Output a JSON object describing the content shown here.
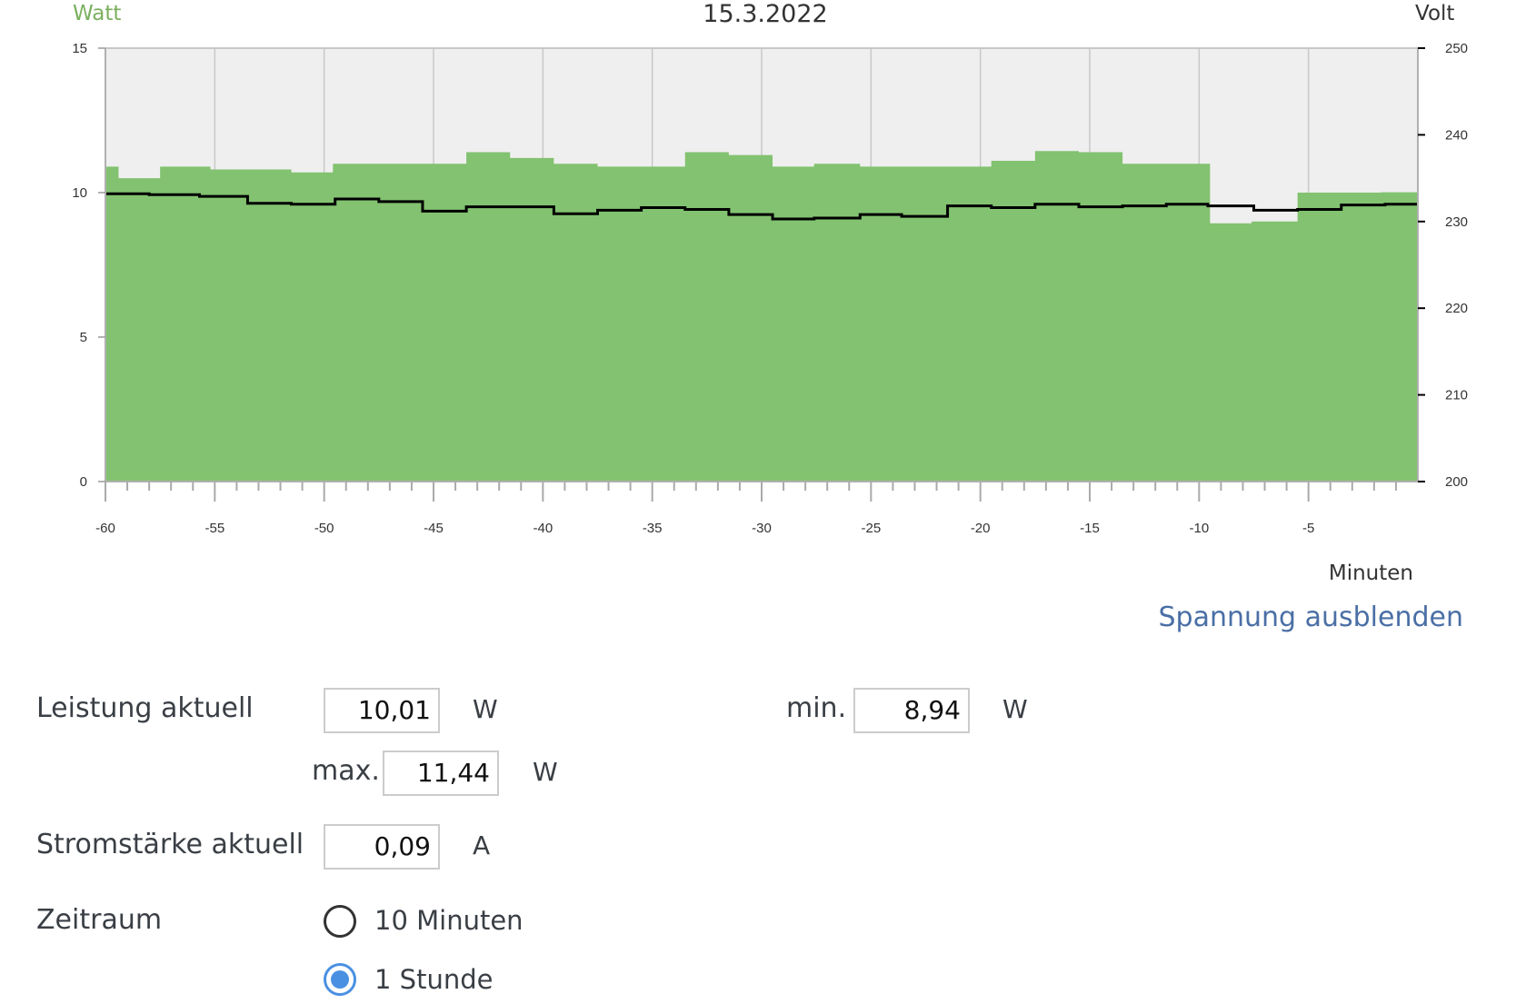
{
  "chart_data": {
    "type": "area",
    "title": "15.3.2022",
    "xlabel": "Minuten",
    "ylabel_left": "Watt",
    "ylabel_right": "Volt",
    "xlim": [
      -60,
      0
    ],
    "ylim_left": [
      0,
      15
    ],
    "ylim_right": [
      200,
      250
    ],
    "x_ticks": [
      -60,
      -55,
      -50,
      -45,
      -40,
      -35,
      -30,
      -25,
      -20,
      -15,
      -10,
      -5
    ],
    "y_left_ticks": [
      0,
      5,
      10,
      15
    ],
    "y_right_ticks": [
      200,
      210,
      220,
      230,
      240,
      250
    ],
    "grid": true,
    "colors": {
      "power": "#82c270",
      "voltage": "#000000",
      "watt_label": "#7ab05e",
      "plot_bg": "#efefef"
    },
    "series": [
      {
        "name": "Watt",
        "axis": "left",
        "x": [
          -60,
          -59.4,
          -57.5,
          -55.2,
          -51.5,
          -49.6,
          -45.6,
          -43.5,
          -41.5,
          -39.5,
          -37.5,
          -33.5,
          -31.5,
          -29.5,
          -27.6,
          -25.5,
          -23.6,
          -21.5,
          -19.5,
          -17.5,
          -15.5,
          -13.5,
          -11.5,
          -9.5,
          -7.6,
          -5.5,
          -3.6,
          -1.7
        ],
        "values": [
          10.9,
          10.5,
          10.9,
          10.8,
          10.7,
          11.0,
          11.0,
          11.4,
          11.2,
          11.0,
          10.9,
          11.4,
          11.3,
          10.9,
          11.0,
          10.9,
          10.9,
          10.9,
          11.1,
          11.44,
          11.4,
          11.0,
          11.0,
          8.94,
          9.0,
          10.0,
          10.0,
          10.01
        ]
      },
      {
        "name": "Volt",
        "axis": "right",
        "x": [
          -60,
          -58,
          -55.7,
          -53.5,
          -51.5,
          -49.5,
          -47.5,
          -45.5,
          -43.5,
          -39.5,
          -37.5,
          -35.5,
          -33.5,
          -31.5,
          -29.5,
          -27.6,
          -25.5,
          -23.6,
          -21.5,
          -19.5,
          -17.5,
          -15.5,
          -13.5,
          -11.5,
          -9.6,
          -7.5,
          -5.5,
          -3.5,
          -1.5
        ],
        "values": [
          233.2,
          233.1,
          232.9,
          232.1,
          232.0,
          232.6,
          232.3,
          231.2,
          231.7,
          230.9,
          231.3,
          231.6,
          231.4,
          230.8,
          230.3,
          230.4,
          230.8,
          230.6,
          231.8,
          231.6,
          232.0,
          231.7,
          231.8,
          232.0,
          231.8,
          231.3,
          231.4,
          231.9,
          232.0
        ]
      }
    ]
  },
  "link_text": "Spannung ausblenden",
  "form": {
    "leistung_label": "Leistung aktuell",
    "leistung_value": "10,01",
    "leistung_unit": "W",
    "min_label": "min.",
    "min_value": "8,94",
    "min_unit": "W",
    "max_label": "max.",
    "max_value": "11,44",
    "max_unit": "W",
    "strom_label": "Stromstärke aktuell",
    "strom_value": "0,09",
    "strom_unit": "A",
    "zeitraum_label": "Zeitraum",
    "options": [
      {
        "label": "10 Minuten",
        "checked": false
      },
      {
        "label": "1 Stunde",
        "checked": true
      }
    ]
  }
}
